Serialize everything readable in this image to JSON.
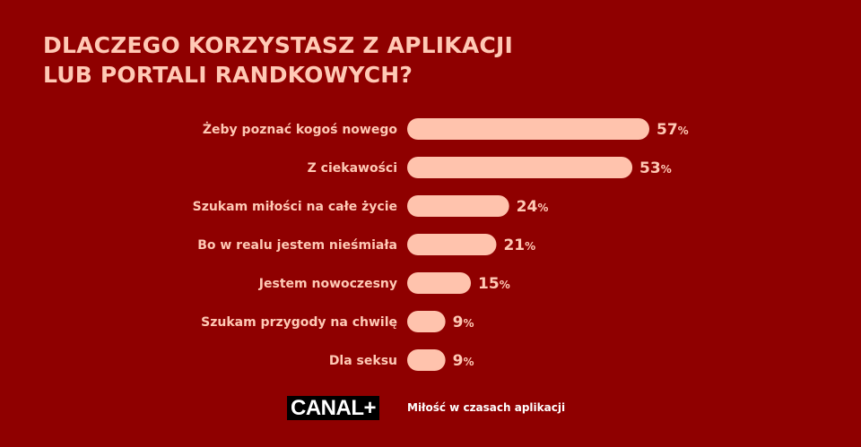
{
  "title_lines": [
    "DLACZEGO KORZYSTASZ Z APLIKACJI",
    "LUB PORTALI RANDKOWYCH?"
  ],
  "colors": {
    "background": "#8f0000",
    "bar": "#ffc3ad",
    "text": "#ffc9b5",
    "logo_bg": "#000000",
    "logo_text": "#ffffff",
    "footer_text": "#ffffff"
  },
  "chart_data": {
    "type": "bar",
    "orientation": "horizontal",
    "title": "DLACZEGO KORZYSTASZ Z APLIKACJI LUB PORTALI RANDKOWYCH?",
    "categories": [
      "Żeby poznać kogoś nowego",
      "Z ciekawości",
      "Szukam miłości na całe życie",
      "Bo w realu jestem nieśmiała",
      "Jestem nowoczesny",
      "Szukam przygody na chwilę",
      "Dla seksu"
    ],
    "values": [
      57,
      53,
      24,
      21,
      15,
      9,
      9
    ],
    "unit": "%",
    "value_labels": [
      "57",
      "53",
      "24",
      "21",
      "15",
      "9",
      "9"
    ],
    "grid": false,
    "legend": "none"
  },
  "footer": {
    "logo": "CANAL+",
    "caption": "Miłość w czasach aplikacji"
  }
}
